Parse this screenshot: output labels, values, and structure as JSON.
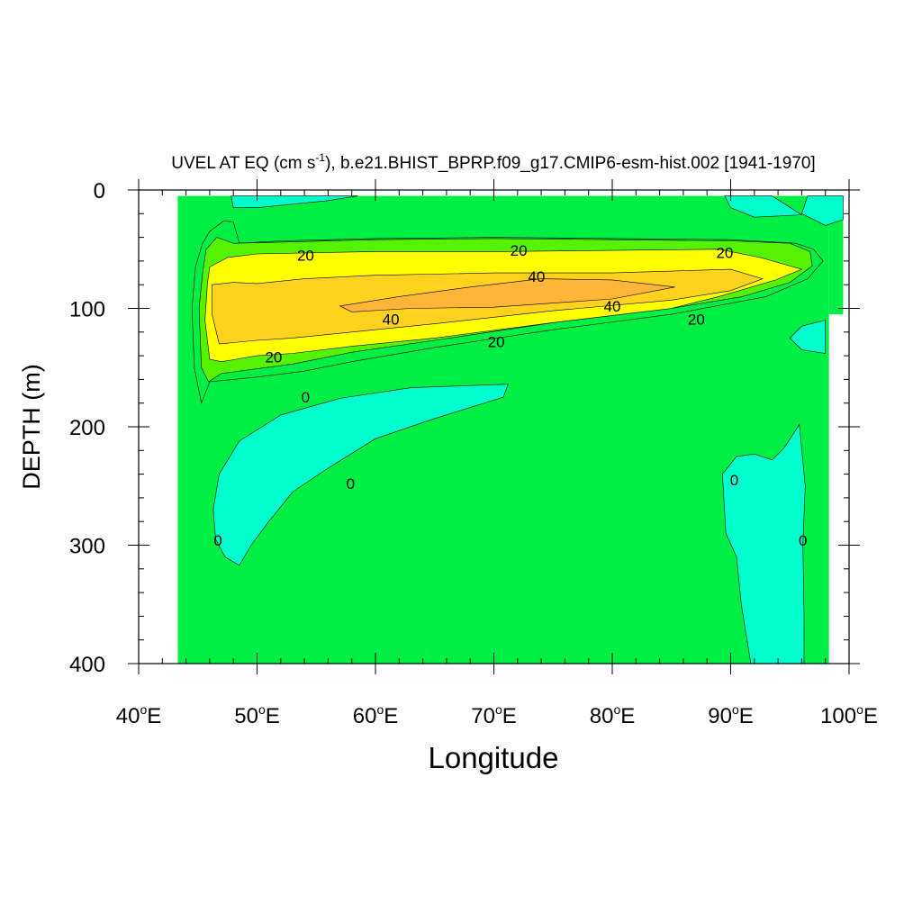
{
  "chart_data": {
    "type": "contour",
    "title": {
      "prefix": "UVEL AT EQ (cm s",
      "superscript": "-1",
      "suffix": "), b.e21.BHIST_BPRP.f09_g17.CMIP6-esm-hist.002 [1941-1970]"
    },
    "xlabel": "Longitude",
    "ylabel": "DEPTH (m)",
    "xlim": [
      40,
      100
    ],
    "ylim": [
      0,
      400
    ],
    "y_inverted": true,
    "x_ticks": [
      {
        "value": 40,
        "label": "40",
        "deg": "o",
        "suffix": "E"
      },
      {
        "value": 50,
        "label": "50",
        "deg": "o",
        "suffix": "E"
      },
      {
        "value": 60,
        "label": "60",
        "deg": "o",
        "suffix": "E"
      },
      {
        "value": 70,
        "label": "70",
        "deg": "o",
        "suffix": "E"
      },
      {
        "value": 80,
        "label": "80",
        "deg": "o",
        "suffix": "E"
      },
      {
        "value": 90,
        "label": "90",
        "deg": "o",
        "suffix": "E"
      },
      {
        "value": 100,
        "label": "100",
        "deg": "o",
        "suffix": "E"
      }
    ],
    "y_ticks": [
      {
        "value": 0,
        "label": "0"
      },
      {
        "value": 100,
        "label": "100"
      },
      {
        "value": 200,
        "label": "200"
      },
      {
        "value": 300,
        "label": "300"
      },
      {
        "value": 400,
        "label": "400"
      }
    ],
    "x_minor_step": 2,
    "y_minor_step": 20,
    "data_domain": {
      "x": [
        43.3,
        98.3
      ],
      "y": [
        5,
        400
      ]
    },
    "levels": [
      {
        "name": "below-0",
        "color": "#00ffcc"
      },
      {
        "name": "0-10",
        "color": "#00ef44"
      },
      {
        "name": "10-20",
        "color": "#55f300"
      },
      {
        "name": "20-30",
        "color": "#ffff00"
      },
      {
        "name": "30-40",
        "color": "#ffd21e"
      },
      {
        "name": "above-40",
        "color": "#ffb537"
      }
    ],
    "regions": [
      {
        "level": "below-0",
        "points": [
          [
            47.8,
            5
          ],
          [
            58.5,
            5
          ],
          [
            56,
            9
          ],
          [
            50,
            15
          ],
          [
            48,
            15
          ]
        ]
      },
      {
        "level": "below-0",
        "points": [
          [
            89.5,
            5
          ],
          [
            93.5,
            5
          ],
          [
            96,
            21
          ],
          [
            92,
            23
          ],
          [
            90,
            15
          ]
        ]
      },
      {
        "level": "below-0",
        "points": [
          [
            96.5,
            5
          ],
          [
            99.5,
            5
          ],
          [
            99.5,
            25
          ],
          [
            98,
            30
          ],
          [
            96,
            20
          ]
        ]
      },
      {
        "level": "below-0",
        "points": [
          [
            96,
            115
          ],
          [
            98,
            110
          ],
          [
            98,
            138
          ],
          [
            96,
            135
          ],
          [
            95,
            125
          ]
        ]
      },
      {
        "level": "below-0",
        "points": [
          [
            71.2,
            164
          ],
          [
            70.8,
            175
          ],
          [
            65,
            193
          ],
          [
            60,
            210
          ],
          [
            56,
            235
          ],
          [
            53,
            255
          ],
          [
            51,
            280
          ],
          [
            49.5,
            300
          ],
          [
            48.5,
            317
          ],
          [
            47.3,
            310
          ],
          [
            46.5,
            295
          ],
          [
            46.3,
            270
          ],
          [
            46.8,
            240
          ],
          [
            48.5,
            212
          ],
          [
            52,
            190
          ],
          [
            57,
            176
          ],
          [
            63,
            167
          ]
        ]
      },
      {
        "level": "below-0",
        "points": [
          [
            95.8,
            198
          ],
          [
            96.3,
            250
          ],
          [
            96.1,
            300
          ],
          [
            96.2,
            360
          ],
          [
            96.2,
            400
          ],
          [
            91.7,
            400
          ],
          [
            90.9,
            350
          ],
          [
            90.5,
            310
          ],
          [
            89.6,
            290
          ],
          [
            89.3,
            240
          ],
          [
            90.5,
            225
          ],
          [
            92,
            223
          ],
          [
            93.5,
            228
          ],
          [
            94.5,
            218
          ]
        ]
      },
      {
        "level": "0-10",
        "points": [
          [
            45.4,
            45
          ],
          [
            46,
            35
          ],
          [
            47.2,
            26
          ],
          [
            48,
            27
          ],
          [
            48.5,
            45
          ],
          [
            52,
            43
          ],
          [
            60,
            41
          ],
          [
            70,
            40
          ],
          [
            80,
            41
          ],
          [
            90,
            42
          ],
          [
            95.5,
            45
          ],
          [
            97,
            50
          ],
          [
            97.8,
            60
          ],
          [
            96.5,
            75
          ],
          [
            93,
            90
          ],
          [
            85,
            105
          ],
          [
            75,
            118
          ],
          [
            65,
            133
          ],
          [
            58,
            145
          ],
          [
            54,
            153
          ],
          [
            50,
            158
          ],
          [
            46,
            162
          ],
          [
            45.3,
            180
          ],
          [
            44.7,
            150
          ],
          [
            44.5,
            100
          ],
          [
            44.8,
            65
          ]
        ]
      },
      {
        "level": "10-20",
        "points": [
          [
            45.7,
            50
          ],
          [
            46.6,
            40
          ],
          [
            48,
            45
          ],
          [
            52,
            44
          ],
          [
            60,
            42
          ],
          [
            70,
            41
          ],
          [
            80,
            42
          ],
          [
            90,
            43
          ],
          [
            95,
            45
          ],
          [
            96.7,
            52
          ],
          [
            96.9,
            64
          ],
          [
            95,
            78
          ],
          [
            91,
            90
          ],
          [
            85,
            100
          ],
          [
            75,
            112
          ],
          [
            65,
            127
          ],
          [
            58,
            137
          ],
          [
            53,
            147
          ],
          [
            50,
            151
          ],
          [
            47,
            155
          ],
          [
            45.9,
            162
          ],
          [
            45.3,
            150
          ],
          [
            45.1,
            100
          ],
          [
            45.4,
            70
          ]
        ]
      },
      {
        "level": "20-30",
        "points": [
          [
            46,
            65
          ],
          [
            47.5,
            57
          ],
          [
            50,
            54
          ],
          [
            60,
            52
          ],
          [
            70,
            52
          ],
          [
            80,
            51
          ],
          [
            89,
            50
          ],
          [
            92.5,
            57
          ],
          [
            96,
            67
          ],
          [
            93.8,
            76
          ],
          [
            89,
            90
          ],
          [
            85,
            100
          ],
          [
            75,
            112
          ],
          [
            65,
            125
          ],
          [
            58,
            132
          ],
          [
            53,
            138
          ],
          [
            50,
            140
          ],
          [
            47,
            145
          ],
          [
            46,
            143
          ],
          [
            45.6,
            110
          ],
          [
            45.8,
            80
          ]
        ]
      },
      {
        "level": "30-40",
        "points": [
          [
            46.2,
            80
          ],
          [
            48,
            78
          ],
          [
            50,
            79
          ],
          [
            54,
            75
          ],
          [
            60,
            72
          ],
          [
            70,
            70
          ],
          [
            80,
            70
          ],
          [
            90,
            67
          ],
          [
            92.7,
            75
          ],
          [
            90,
            85
          ],
          [
            85,
            93
          ],
          [
            75,
            102
          ],
          [
            65,
            113
          ],
          [
            58,
            120
          ],
          [
            53,
            125
          ],
          [
            50,
            127
          ],
          [
            46.8,
            130
          ],
          [
            46.2,
            105
          ]
        ]
      },
      {
        "level": "above-40",
        "points": [
          [
            57,
            98
          ],
          [
            62,
            90
          ],
          [
            68,
            82
          ],
          [
            74,
            75
          ],
          [
            80,
            76
          ],
          [
            85.3,
            82
          ],
          [
            80,
            92
          ],
          [
            70,
            99
          ],
          [
            63,
            100
          ],
          [
            58,
            103
          ]
        ]
      }
    ],
    "contour_labels": [
      {
        "text": "20",
        "x": 54.1,
        "y": 55
      },
      {
        "text": "20",
        "x": 72.1,
        "y": 51
      },
      {
        "text": "20",
        "x": 89.5,
        "y": 53
      },
      {
        "text": "40",
        "x": 73.6,
        "y": 73
      },
      {
        "text": "40",
        "x": 80.0,
        "y": 98
      },
      {
        "text": "40",
        "x": 61.3,
        "y": 109
      },
      {
        "text": "20",
        "x": 87.1,
        "y": 109
      },
      {
        "text": "20",
        "x": 70.2,
        "y": 128
      },
      {
        "text": "20",
        "x": 51.4,
        "y": 141
      },
      {
        "text": "0",
        "x": 54.1,
        "y": 175
      },
      {
        "text": "0",
        "x": 57.9,
        "y": 248
      },
      {
        "text": "0",
        "x": 46.7,
        "y": 296
      },
      {
        "text": "0",
        "x": 90.3,
        "y": 245
      },
      {
        "text": "0",
        "x": 96.1,
        "y": 296
      }
    ]
  }
}
